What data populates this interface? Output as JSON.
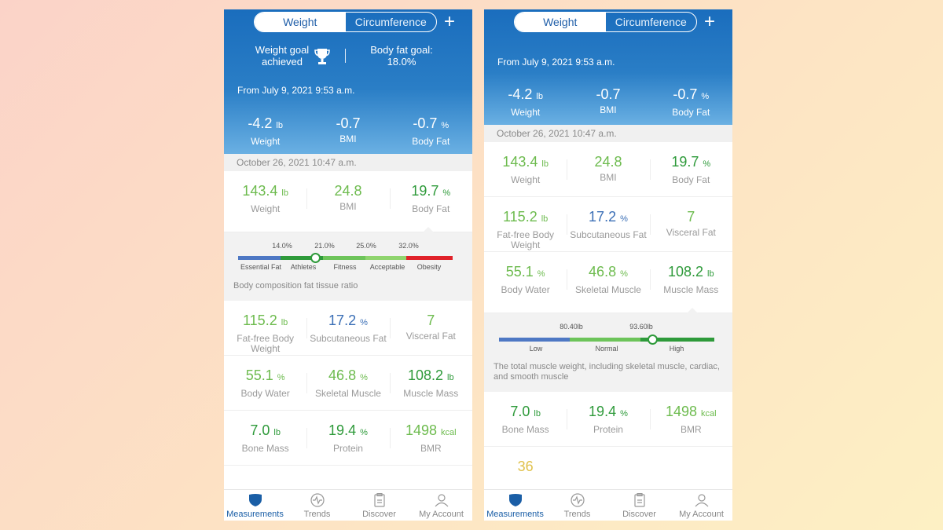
{
  "colors": {
    "header_blue": "#1a6dbd",
    "value_green": "#6dbb4e",
    "value_dark_green": "#2e9a3a",
    "value_blue": "#3b6fb6",
    "value_yellow": "#e0c14a",
    "active_tab": "#1a5ea6"
  },
  "left": {
    "segment": {
      "weight": "Weight",
      "circumference": "Circumference",
      "add": "+"
    },
    "goals": {
      "weight_goal": "Weight goal achieved",
      "body_fat_goal": "Body fat goal:",
      "body_fat_goal_value": "18.0%"
    },
    "from": "From July 9, 2021 9:53 a.m.",
    "deltas": [
      {
        "value": "-4.2",
        "unit": "lb",
        "label": "Weight"
      },
      {
        "value": "-0.7",
        "unit": "",
        "label": "BMI"
      },
      {
        "value": "-0.7",
        "unit": "%",
        "label": "Body Fat"
      }
    ],
    "date": "October 26, 2021 10:47 a.m.",
    "row1": [
      {
        "value": "143.4",
        "unit": "lb",
        "label": "Weight"
      },
      {
        "value": "24.8",
        "unit": "",
        "label": "BMI"
      },
      {
        "value": "19.7",
        "unit": "%",
        "label": "Body Fat"
      }
    ],
    "gauge": {
      "ticks": [
        "14.0%",
        "21.0%",
        "25.0%",
        "32.0%"
      ],
      "zones": [
        "Essential Fat",
        "Athletes",
        "Fitness",
        "Acceptable",
        "Obesity"
      ],
      "current_value": 19.7,
      "note": "Body composition fat tissue ratio"
    },
    "row2": [
      {
        "value": "115.2",
        "unit": "lb",
        "label": "Fat-free Body Weight"
      },
      {
        "value": "17.2",
        "unit": "%",
        "label": "Subcutaneous Fat"
      },
      {
        "value": "7",
        "unit": "",
        "label": "Visceral Fat"
      }
    ],
    "row3": [
      {
        "value": "55.1",
        "unit": "%",
        "label": "Body Water"
      },
      {
        "value": "46.8",
        "unit": "%",
        "label": "Skeletal Muscle"
      },
      {
        "value": "108.2",
        "unit": "lb",
        "label": "Muscle Mass"
      }
    ],
    "row4": [
      {
        "value": "7.0",
        "unit": "lb",
        "label": "Bone Mass"
      },
      {
        "value": "19.4",
        "unit": "%",
        "label": "Protein"
      },
      {
        "value": "1498",
        "unit": "kcal",
        "label": "BMR"
      }
    ]
  },
  "right": {
    "segment": {
      "weight": "Weight",
      "circumference": "Circumference",
      "add": "+"
    },
    "from": "From July 9, 2021 9:53 a.m.",
    "deltas": [
      {
        "value": "-4.2",
        "unit": "lb",
        "label": "Weight"
      },
      {
        "value": "-0.7",
        "unit": "",
        "label": "BMI"
      },
      {
        "value": "-0.7",
        "unit": "%",
        "label": "Body Fat"
      }
    ],
    "date": "October 26, 2021 10:47 a.m.",
    "row1": [
      {
        "value": "143.4",
        "unit": "lb",
        "label": "Weight"
      },
      {
        "value": "24.8",
        "unit": "",
        "label": "BMI"
      },
      {
        "value": "19.7",
        "unit": "%",
        "label": "Body Fat"
      }
    ],
    "row2": [
      {
        "value": "115.2",
        "unit": "lb",
        "label": "Fat-free Body Weight"
      },
      {
        "value": "17.2",
        "unit": "%",
        "label": "Subcutaneous Fat"
      },
      {
        "value": "7",
        "unit": "",
        "label": "Visceral Fat"
      }
    ],
    "row3": [
      {
        "value": "55.1",
        "unit": "%",
        "label": "Body Water"
      },
      {
        "value": "46.8",
        "unit": "%",
        "label": "Skeletal Muscle"
      },
      {
        "value": "108.2",
        "unit": "lb",
        "label": "Muscle Mass"
      }
    ],
    "gauge": {
      "ticks": [
        "80.40lb",
        "93.60lb"
      ],
      "zones": [
        "Low",
        "Normal",
        "High"
      ],
      "current_value": 108.2,
      "note": "The total muscle weight, including skeletal muscle, cardiac, and smooth muscle"
    },
    "row4": [
      {
        "value": "7.0",
        "unit": "lb",
        "label": "Bone Mass"
      },
      {
        "value": "19.4",
        "unit": "%",
        "label": "Protein"
      },
      {
        "value": "1498",
        "unit": "kcal",
        "label": "BMR"
      }
    ],
    "row5": [
      {
        "value": "36",
        "unit": "",
        "label": ""
      }
    ]
  },
  "tabbar": [
    {
      "label": "Measurements",
      "icon": "shield-icon",
      "active": true
    },
    {
      "label": "Trends",
      "icon": "pulse-icon",
      "active": false
    },
    {
      "label": "Discover",
      "icon": "clipboard-icon",
      "active": false
    },
    {
      "label": "My Account",
      "icon": "person-icon",
      "active": false
    }
  ]
}
